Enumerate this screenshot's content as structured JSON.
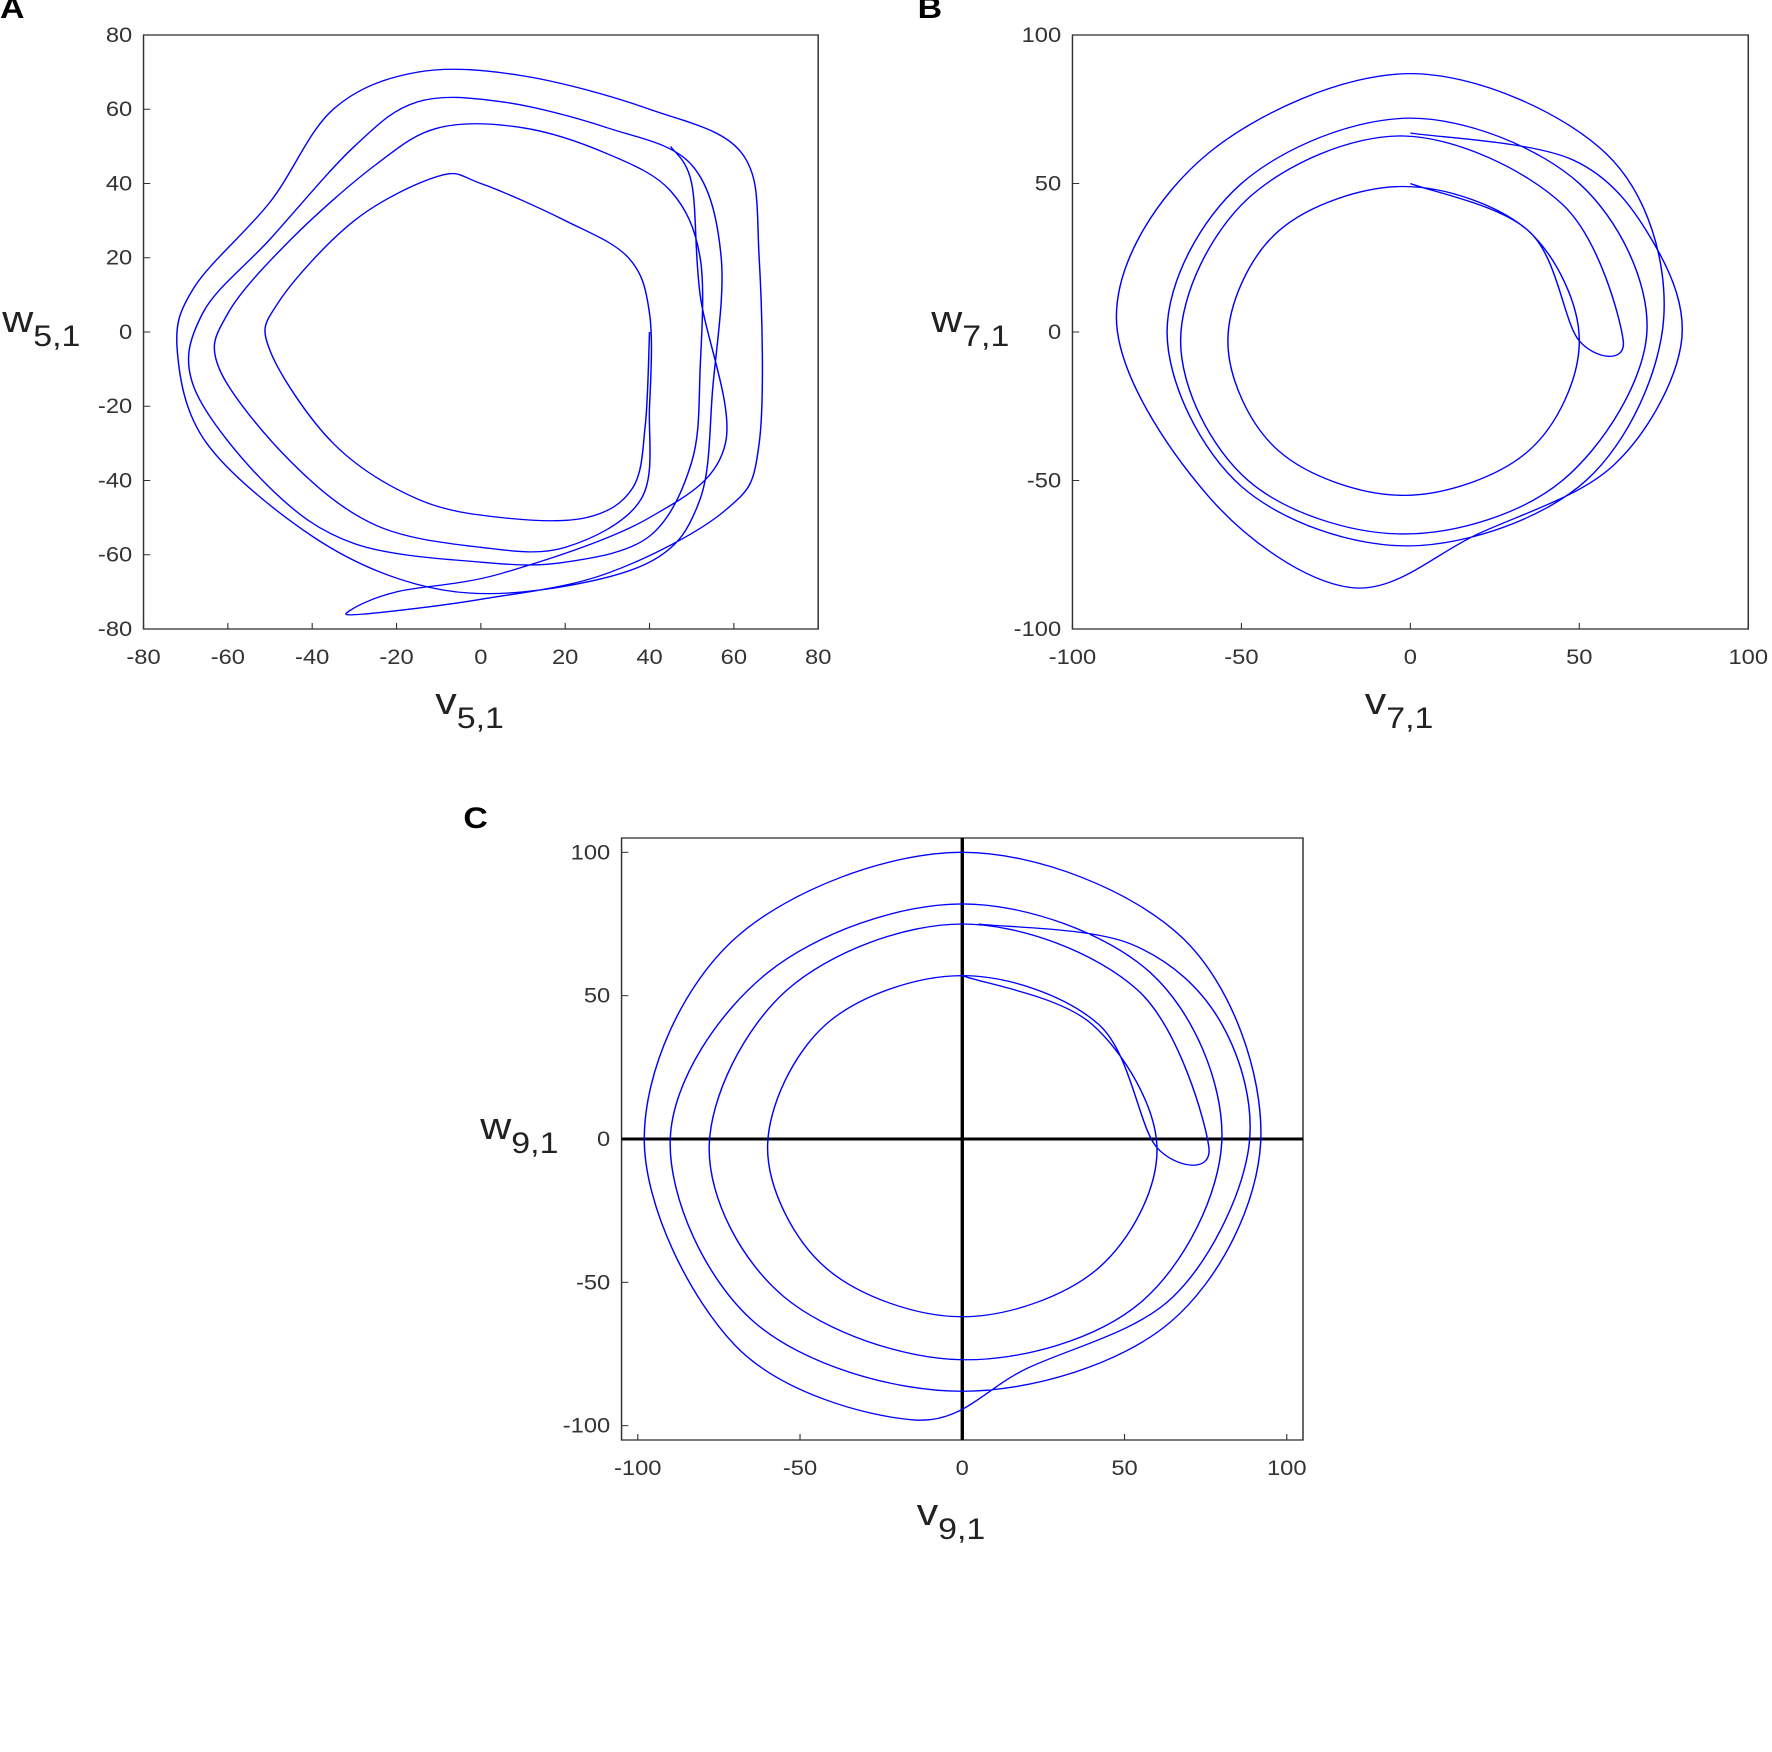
{
  "chart_data": [
    {
      "type": "line",
      "label": "A",
      "xlabel": "v",
      "xlabel_sub": "5,1",
      "ylabel": "w",
      "ylabel_sub": "5,1",
      "color": "#0000ff",
      "xlim": [
        -80,
        80
      ],
      "ylim": [
        -80,
        80
      ],
      "xticks": [
        -80,
        -60,
        -40,
        -20,
        0,
        20,
        40,
        60,
        80
      ],
      "yticks": [
        -80,
        -60,
        -40,
        -20,
        0,
        20,
        40,
        60,
        80
      ],
      "zero_lines": false,
      "x": [
        40,
        39,
        36,
        25,
        5,
        -15,
        -35,
        -50,
        -48,
        -30,
        -10,
        0,
        20,
        35,
        40,
        40,
        38,
        20,
        0,
        -25,
        -45,
        -62,
        -60,
        -45,
        -25,
        -10,
        10,
        30,
        45,
        52,
        52,
        50,
        40,
        20,
        0,
        -30,
        -50,
        -68,
        -66,
        -50,
        -30,
        -15,
        5,
        30,
        50,
        57,
        55,
        52,
        40,
        10,
        -15,
        -40,
        -65,
        -72,
        -68,
        -50,
        -35,
        -15,
        10,
        40,
        62,
        66,
        66,
        58,
        30,
        0,
        -28,
        -31,
        -20,
        5,
        40,
        58,
        52,
        50,
        45
      ],
      "values": [
        0,
        -25,
        -42,
        -50,
        -50,
        -45,
        -30,
        -5,
        8,
        30,
        42,
        40,
        30,
        20,
        5,
        -20,
        -45,
        -58,
        -58,
        -52,
        -35,
        -10,
        5,
        25,
        45,
        55,
        55,
        48,
        38,
        20,
        -10,
        -35,
        -55,
        -62,
        -62,
        -57,
        -42,
        -15,
        5,
        25,
        50,
        62,
        62,
        55,
        45,
        20,
        -15,
        -45,
        -62,
        -70,
        -68,
        -55,
        -30,
        -5,
        12,
        35,
        60,
        70,
        69,
        60,
        48,
        20,
        -30,
        -48,
        -65,
        -72,
        -76,
        -75,
        -70,
        -65,
        -50,
        -30,
        10,
        40,
        50
      ]
    },
    {
      "type": "line",
      "label": "B",
      "xlabel": "v",
      "xlabel_sub": "7,1",
      "ylabel": "w",
      "ylabel_sub": "7,1",
      "color": "#0000ff",
      "xlim": [
        -100,
        100
      ],
      "ylim": [
        -100,
        100
      ],
      "xticks": [
        -100,
        -50,
        0,
        50,
        100
      ],
      "yticks": [
        -100,
        -50,
        0,
        50,
        100
      ],
      "zero_lines": false,
      "x": [
        0,
        35,
        50,
        35,
        -2,
        -39,
        -54,
        -39,
        -2,
        35,
        50,
        63,
        45,
        -2,
        -48,
        -68,
        -48,
        -2,
        45,
        70,
        50,
        0,
        -50,
        -72,
        -50,
        0,
        52,
        75,
        58,
        0,
        -60,
        -87,
        -60,
        -18,
        20,
        60,
        80,
        72,
        48,
        0
      ],
      "values": [
        50,
        34,
        -3,
        -40,
        -55,
        -40,
        -3,
        34,
        49,
        34,
        -3,
        -3,
        43,
        66,
        45,
        -3,
        -50,
        -68,
        -50,
        0,
        50,
        72,
        50,
        0,
        -52,
        -72,
        -50,
        5,
        60,
        87,
        60,
        5,
        -55,
        -86,
        -68,
        -45,
        -5,
        30,
        58,
        67
      ]
    },
    {
      "type": "line",
      "label": "C",
      "xlabel": "v",
      "xlabel_sub": "9,1",
      "ylabel": "w",
      "ylabel_sub": "9,1",
      "color": "#0000ff",
      "xlim": [
        -105,
        105
      ],
      "ylim": [
        -105,
        105
      ],
      "xticks": [
        -100,
        -50,
        0,
        50,
        100
      ],
      "yticks": [
        -100,
        -50,
        0,
        50,
        100
      ],
      "zero_lines": true,
      "x": [
        0,
        40,
        60,
        42,
        0,
        -42,
        -60,
        -42,
        0,
        42,
        60,
        76,
        54,
        0,
        -54,
        -78,
        -55,
        0,
        55,
        80,
        58,
        0,
        -60,
        -90,
        -64,
        0,
        64,
        92,
        68,
        0,
        -70,
        -98,
        -70,
        -15,
        20,
        65,
        88,
        80,
        52,
        5
      ],
      "values": [
        57,
        40,
        -3,
        -45,
        -62,
        -45,
        -3,
        40,
        57,
        40,
        -3,
        -3,
        52,
        75,
        52,
        -3,
        -55,
        -77,
        -57,
        0,
        58,
        82,
        58,
        0,
        -64,
        -88,
        -64,
        0,
        70,
        100,
        70,
        0,
        -72,
        -98,
        -80,
        -55,
        -5,
        40,
        68,
        75
      ]
    }
  ]
}
